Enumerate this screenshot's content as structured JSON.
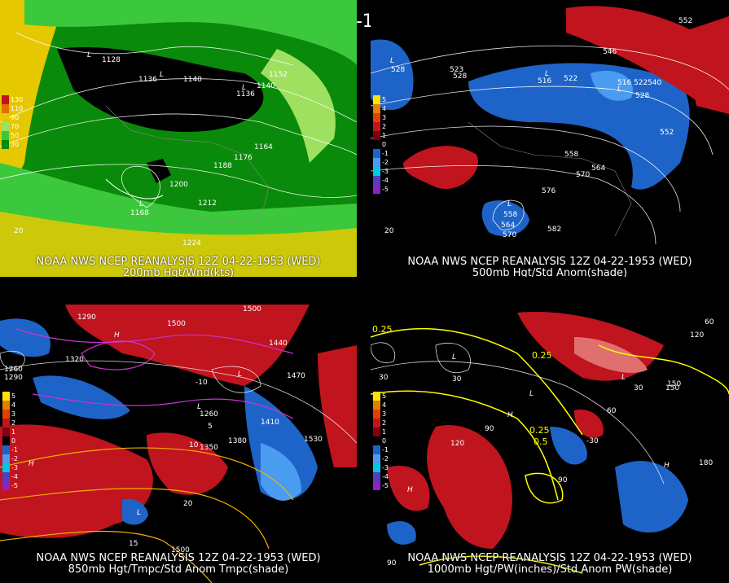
{
  "title": "12Z 04-22-1953 (WED)",
  "colors": {
    "background": "#000000",
    "positive_anom": "#c0141e",
    "negative_anom": "#1e64c8",
    "wind_green": "#3cc83c",
    "wind_yellow": "#e6c800",
    "purple": "#cc33cc"
  },
  "panels": {
    "top_left": {
      "source": "NOAA NWS NCEP REANALYSIS 12Z 04-22-1953 (WED)",
      "field": "200mb Hgt/Wnd(kts)",
      "legend": [
        "130",
        "110",
        "90",
        "70",
        "50",
        "30"
      ],
      "labels": [
        "1128",
        "1136",
        "1140",
        "1136",
        "1140",
        "1152",
        "1164",
        "1176",
        "1188",
        "1200",
        "1212",
        "1168",
        "1224",
        "20",
        "L",
        "L",
        "L",
        "L"
      ]
    },
    "top_right": {
      "source": "NOAA NWS NCEP REANALYSIS 12Z 04-22-1953 (WED)",
      "field": "500mb Hgt/Std Anom(shade)",
      "legend": [
        "5",
        "4",
        "3",
        "2",
        "1",
        "0",
        "-1",
        "-2",
        "-3",
        "-4",
        "-5"
      ],
      "labels": [
        "528",
        "523",
        "528",
        "516",
        "522",
        "516",
        "522",
        "540",
        "528",
        "546",
        "552",
        "558",
        "552",
        "564",
        "570",
        "576",
        "558",
        "564",
        "570",
        "582",
        "20",
        "L",
        "L",
        "L",
        "L"
      ]
    },
    "bottom_left": {
      "source": "NOAA NWS NCEP REANALYSIS 12Z 04-22-1953 (WED)",
      "field": "850mb Hgt/Tmpc/Std Anom Tmpc(shade)",
      "legend": [
        "5",
        "4",
        "3",
        "2",
        "1",
        "0",
        "-1",
        "-2",
        "-3",
        "-4",
        "-5"
      ],
      "labels": [
        "1290",
        "1500",
        "1320",
        "1260",
        "1290",
        "1440",
        "1470",
        "1410",
        "1530",
        "1350",
        "1380",
        "1260",
        "1500",
        "1500",
        "-10",
        "5",
        "10",
        "15",
        "20",
        "H",
        "L",
        "L",
        "H",
        "L"
      ]
    },
    "bottom_right": {
      "source": "NOAA NWS NCEP REANALYSIS 12Z 04-22-1953 (WED)",
      "field": "1000mb Hgt/PW(inches)/Std Anom PW(shade)",
      "legend": [
        "5",
        "4",
        "3",
        "2",
        "1",
        "0",
        "-1",
        "-2",
        "-3",
        "-4",
        "-5"
      ],
      "labels": [
        "0.25",
        "0.25",
        "0.25",
        "0.5",
        "30",
        "30",
        "60",
        "90",
        "120",
        "150",
        "180",
        "120",
        "90",
        "60",
        "30",
        "-30",
        "150",
        "90",
        "L",
        "L",
        "L",
        "H",
        "H",
        "H"
      ]
    }
  }
}
